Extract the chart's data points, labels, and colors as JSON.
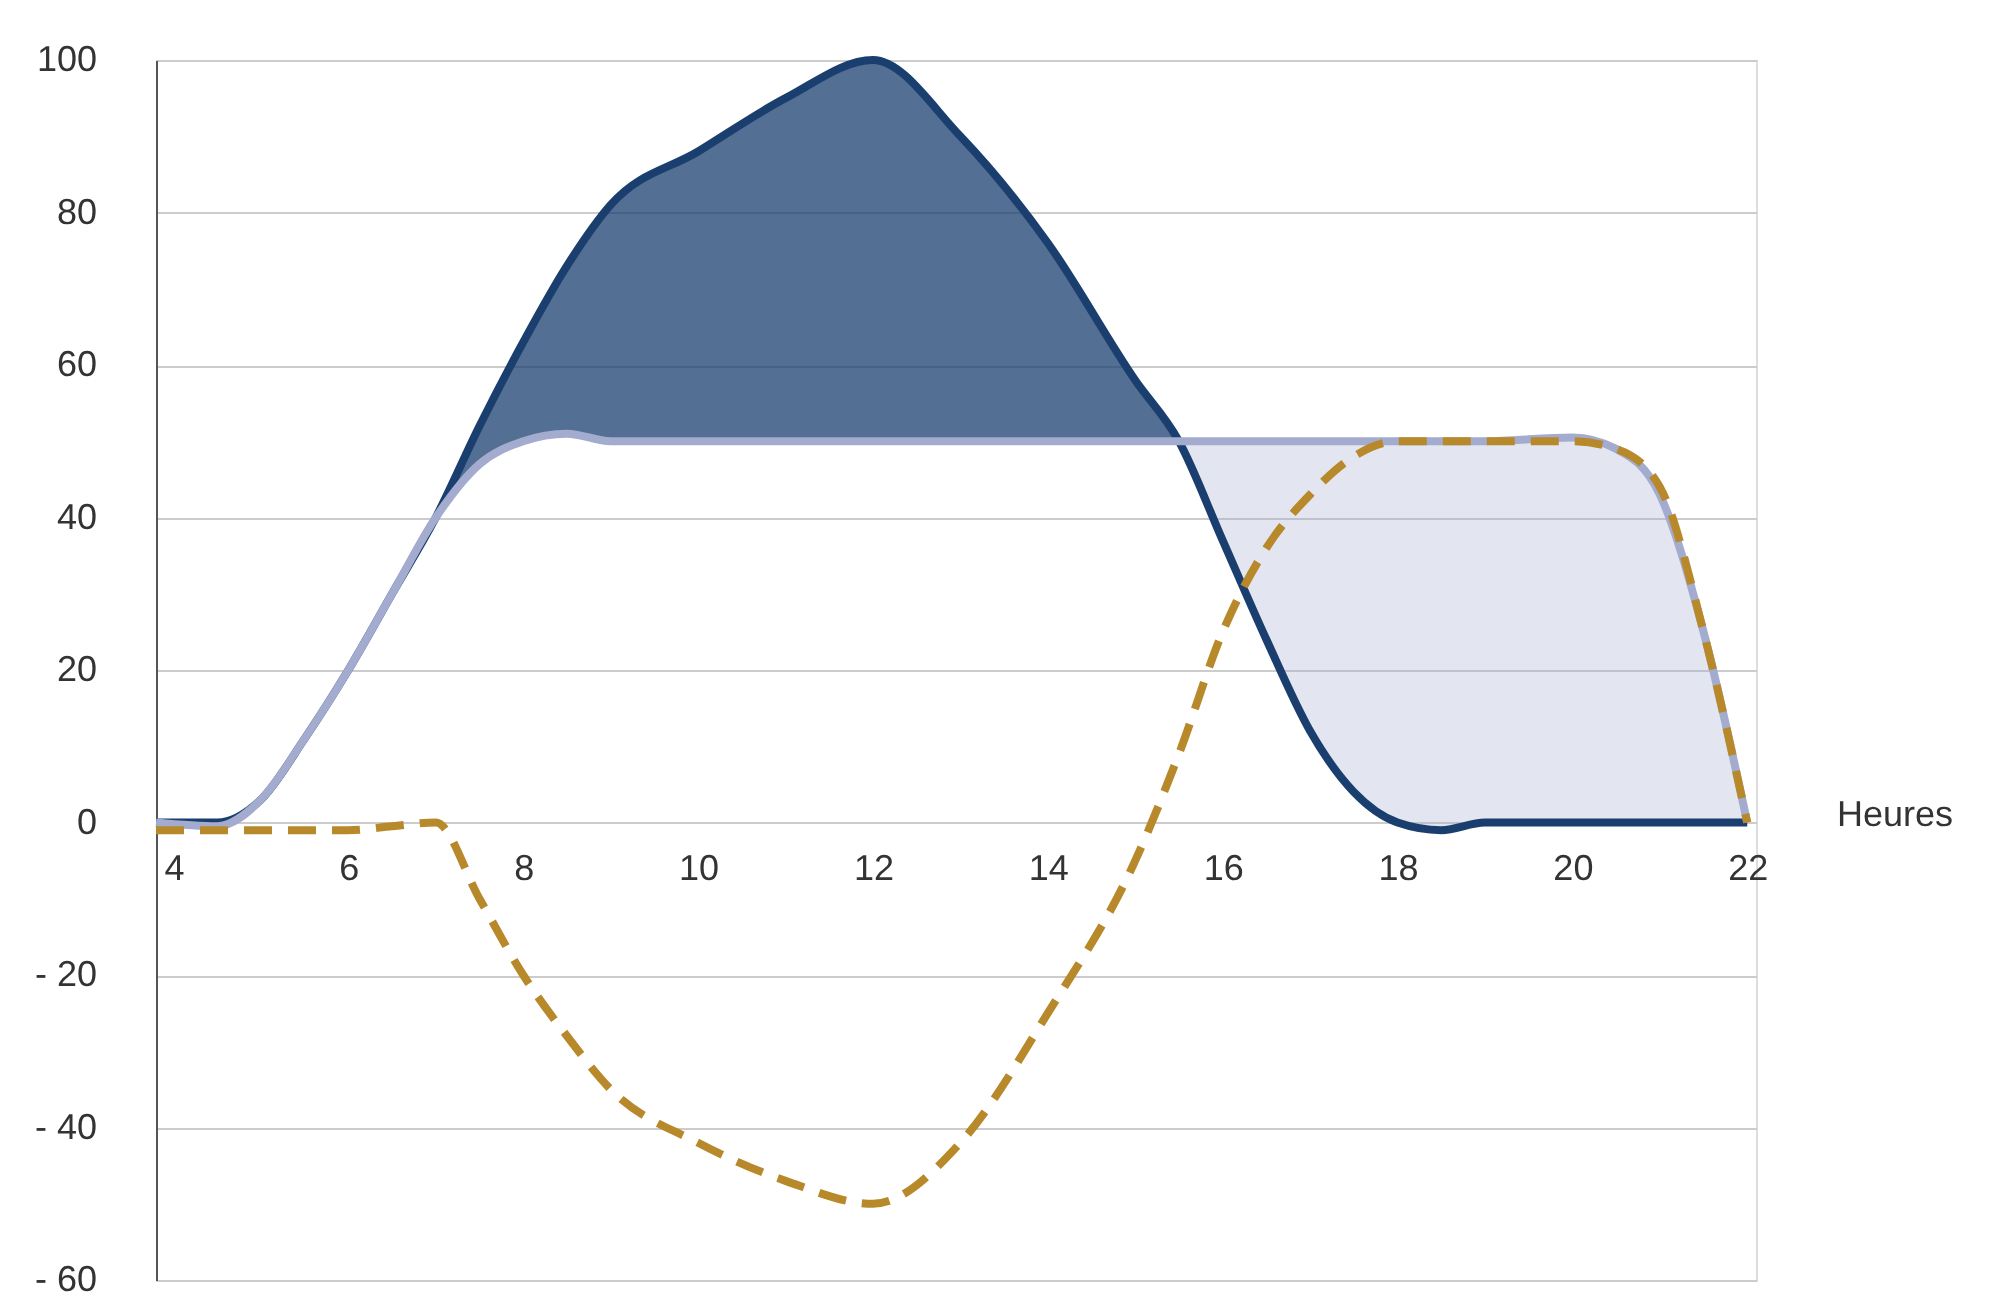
{
  "chart_data": {
    "type": "line",
    "xlabel": "Heures",
    "xlim": [
      3.8,
      22.1
    ],
    "xticks": [
      4,
      6,
      8,
      10,
      12,
      14,
      16,
      18,
      20,
      22
    ],
    "ylim": [
      -60,
      100
    ],
    "yticks": [
      {
        "value": -60,
        "label": "- 60"
      },
      {
        "value": -40,
        "label": "- 40"
      },
      {
        "value": -20,
        "label": "- 20"
      },
      0,
      20,
      40,
      60,
      80,
      100
    ],
    "grid": "y",
    "marker": "none",
    "x": [
      3.8,
      4.5,
      5,
      5.5,
      6,
      6.5,
      7,
      7.5,
      8,
      8.5,
      9,
      10,
      11,
      12,
      13,
      14,
      15,
      15.5,
      16,
      16.5,
      17,
      17.5,
      18,
      18.5,
      19,
      20,
      20.5,
      21,
      21.5,
      22
    ],
    "series": [
      {
        "color": "#1a3f6f",
        "values": [
          0,
          0,
          3,
          11,
          20,
          30,
          40,
          52,
          63,
          73,
          81,
          88,
          95,
          100,
          90,
          76,
          58,
          50,
          37,
          24,
          12,
          4,
          0,
          -1,
          0,
          0,
          0,
          0,
          0,
          0
        ],
        "lower": [
          0,
          0,
          3,
          11,
          20,
          30,
          40,
          47,
          50,
          51,
          50,
          50,
          50,
          50,
          50,
          50,
          50,
          50,
          null,
          null,
          null,
          null,
          null,
          null,
          null,
          null,
          null,
          null,
          null,
          null
        ],
        "upper": [
          0,
          0,
          3,
          11,
          20,
          30,
          40,
          52,
          63,
          73,
          81,
          88,
          95,
          100,
          90,
          76,
          58,
          50,
          null,
          null,
          null,
          null,
          null,
          null,
          null,
          null,
          null,
          null,
          null,
          null
        ]
      },
      {
        "color": "#a3abcf",
        "values": [
          0,
          -0.5,
          3,
          11,
          20,
          30,
          40,
          47,
          50,
          51,
          50,
          50,
          50,
          50,
          50,
          50,
          50,
          50,
          50,
          50,
          50,
          50,
          50,
          50,
          50,
          50.5,
          49,
          43,
          25,
          0
        ],
        "lower": [
          null,
          null,
          null,
          null,
          null,
          null,
          null,
          null,
          null,
          null,
          null,
          null,
          null,
          null,
          null,
          null,
          null,
          50,
          37,
          24,
          12,
          4,
          0,
          -1,
          0,
          0,
          0,
          0,
          0,
          0
        ],
        "upper": [
          null,
          null,
          null,
          null,
          null,
          null,
          null,
          null,
          null,
          null,
          null,
          null,
          null,
          null,
          null,
          null,
          null,
          50,
          50,
          50,
          50,
          50,
          50,
          50,
          50,
          50.5,
          49,
          43,
          25,
          0
        ]
      },
      {
        "color": "#b8892b",
        "line_style": "dashed",
        "values": [
          -1,
          -1,
          -1,
          -1,
          -1,
          -0.5,
          0,
          -10,
          -20,
          -28,
          -35,
          -42,
          -47,
          -50,
          -42,
          -25,
          -5,
          9,
          25,
          36,
          43,
          48,
          50,
          50,
          50,
          50,
          49,
          44,
          25,
          0
        ]
      }
    ]
  }
}
